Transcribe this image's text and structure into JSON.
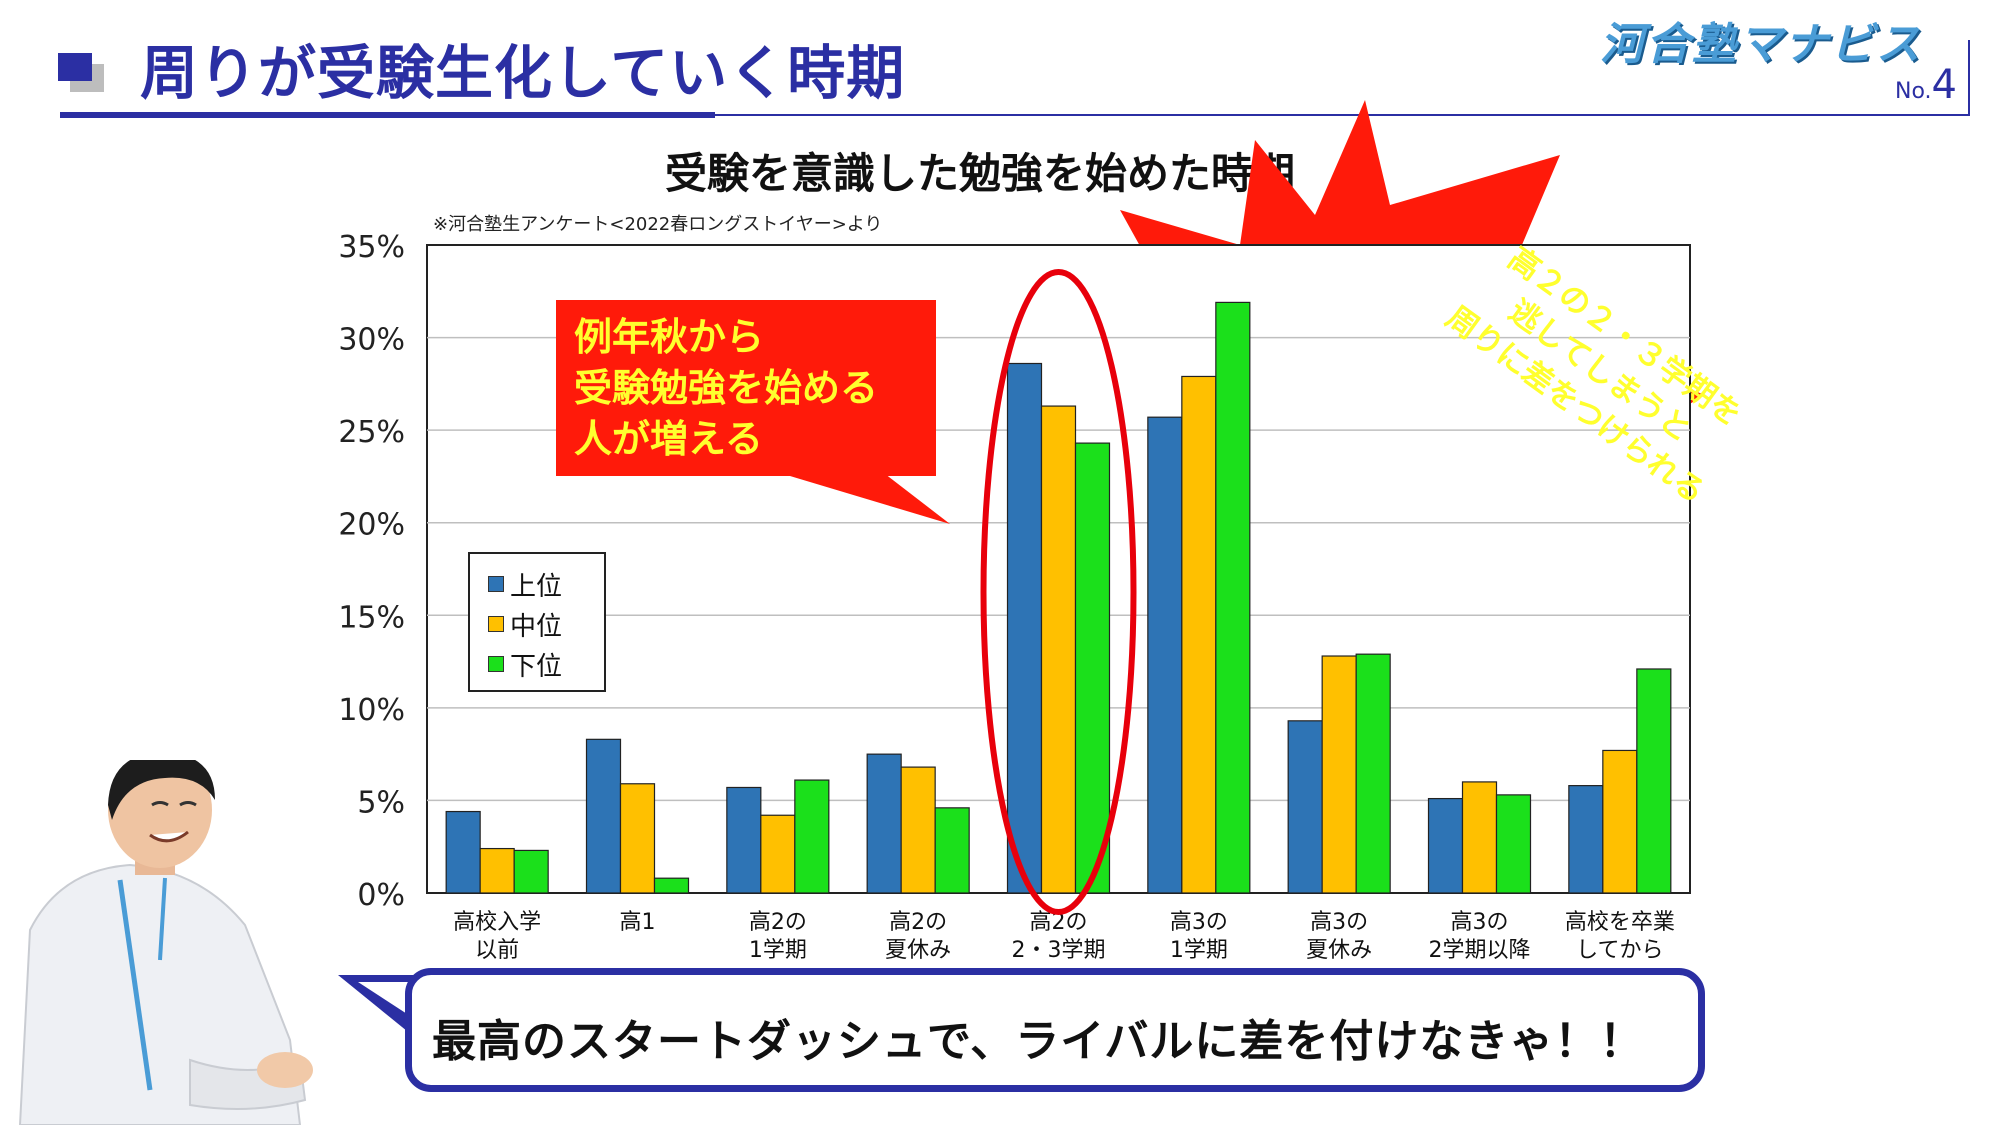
{
  "header": {
    "title": "周りが受験生化していく時期",
    "brand": "河合塾マナビス",
    "page_no_prefix": "No.",
    "page_no": "4"
  },
  "chart_data": {
    "type": "bar",
    "title": "受験を意識した勉強を始めた時期",
    "subtitle": "※河合塾生アンケート<2022春ロングストイヤー>より",
    "categories": [
      [
        "高校入学",
        "以前"
      ],
      [
        "高1",
        ""
      ],
      [
        "高2の",
        "1学期"
      ],
      [
        "高2の",
        "夏休み"
      ],
      [
        "高2の",
        "2・3学期"
      ],
      [
        "高3の",
        "1学期"
      ],
      [
        "高3の",
        "夏休み"
      ],
      [
        "高3の",
        "2学期以降"
      ],
      [
        "高校を卒業",
        "してから"
      ]
    ],
    "series": [
      {
        "name": "上位",
        "color": "#2e74b5",
        "values": [
          4.4,
          8.3,
          5.7,
          7.5,
          28.6,
          25.7,
          9.3,
          5.1,
          5.8
        ]
      },
      {
        "name": "中位",
        "color": "#ffc000",
        "values": [
          2.4,
          5.9,
          4.2,
          6.8,
          26.3,
          27.9,
          12.8,
          6.0,
          7.7
        ]
      },
      {
        "name": "下位",
        "color": "#1be01b",
        "values": [
          2.3,
          0.8,
          6.1,
          4.6,
          24.3,
          31.9,
          12.9,
          5.3,
          12.1
        ]
      }
    ],
    "ylim": [
      0,
      35
    ],
    "yticks": [
      "0%",
      "5%",
      "10%",
      "15%",
      "20%",
      "25%",
      "30%",
      "35%"
    ],
    "grid": true,
    "legend_placement": "left-middle",
    "highlight_category_index": 4
  },
  "callout_left": {
    "lines": [
      "例年秋から",
      "受験勉強を始める",
      "人が増える"
    ]
  },
  "burst": {
    "lines": [
      "高２の２・３学期を",
      "逃してしまうと",
      "周りに差をつけられる"
    ]
  },
  "bubble": {
    "text": "最高のスタートダッシュで、ライバルに差を付けなきゃ！！"
  },
  "colors": {
    "accent": "#2b2fa3",
    "callout": "#ff1a0a",
    "callout_text": "#ffff2e",
    "highlight_ring": "#e8000b"
  }
}
